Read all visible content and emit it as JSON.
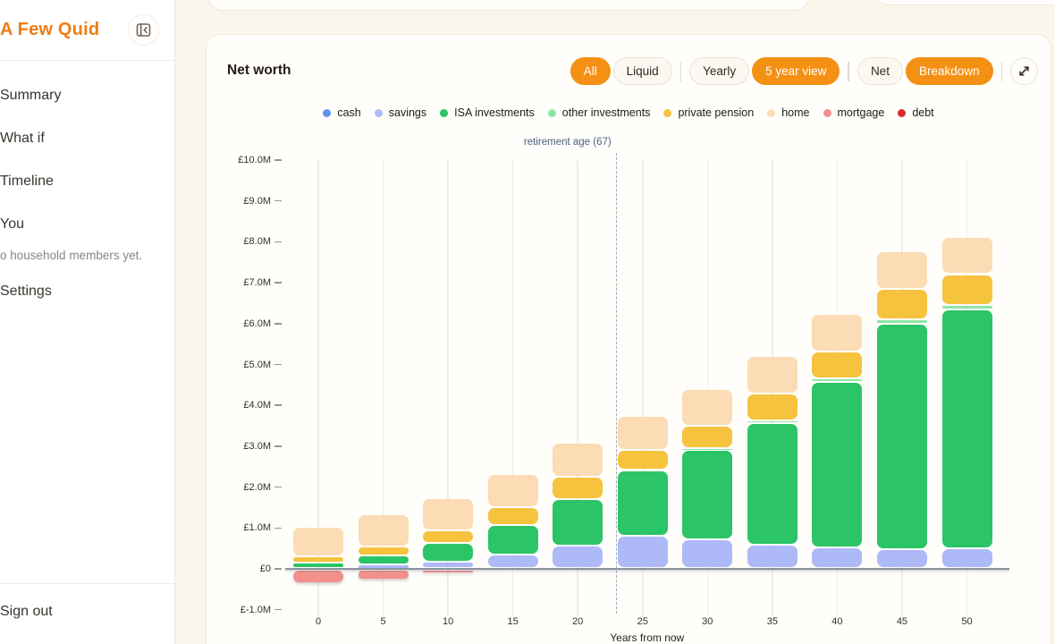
{
  "sidebar": {
    "logo": "A Few Quid",
    "items": [
      {
        "label": "Summary"
      },
      {
        "label": "What if"
      },
      {
        "label": "Timeline"
      },
      {
        "label": "You"
      },
      {
        "label": "Settings"
      }
    ],
    "household_note": "o household members yet.",
    "sign_out": "Sign out"
  },
  "card": {
    "title": "Net worth",
    "toggles": [
      {
        "options": [
          {
            "label": "All",
            "active": true
          },
          {
            "label": "Liquid",
            "active": false
          }
        ]
      },
      {
        "options": [
          {
            "label": "Yearly",
            "active": false
          },
          {
            "label": "5 year view",
            "active": true
          }
        ]
      },
      {
        "options": [
          {
            "label": "Net",
            "active": false
          },
          {
            "label": "Breakdown",
            "active": true
          }
        ]
      }
    ]
  },
  "legend": {
    "items": [
      {
        "label": "cash",
        "color": "#5f94ee"
      },
      {
        "label": "savings",
        "color": "#aeb9f7"
      },
      {
        "label": "ISA investments",
        "color": "#2bc467"
      },
      {
        "label": "other investments",
        "color": "#8ee6a6"
      },
      {
        "label": "private pension",
        "color": "#f6c33e"
      },
      {
        "label": "home",
        "color": "#fbdcb4"
      },
      {
        "label": "mortgage",
        "color": "#f2908e"
      },
      {
        "label": "debt",
        "color": "#da2c2c"
      }
    ]
  },
  "chart_data": {
    "type": "bar",
    "stacked": true,
    "title": "Net worth",
    "xlabel": "Years from now",
    "ylabel": "",
    "unit": "£M",
    "ylim": [
      -1,
      10
    ],
    "grid": "vertical-only",
    "legend_position": "top-center",
    "categories": [
      0,
      5,
      10,
      15,
      20,
      25,
      30,
      35,
      40,
      45,
      50
    ],
    "y_ticks": [
      {
        "v": 10,
        "label": "£10.0M"
      },
      {
        "v": 9,
        "label": "£9.0M"
      },
      {
        "v": 8,
        "label": "£8.0M"
      },
      {
        "v": 7,
        "label": "£7.0M"
      },
      {
        "v": 6,
        "label": "£6.0M"
      },
      {
        "v": 5,
        "label": "£5.0M"
      },
      {
        "v": 4,
        "label": "£4.0M"
      },
      {
        "v": 3,
        "label": "£3.0M"
      },
      {
        "v": 2,
        "label": "£2.0M"
      },
      {
        "v": 1,
        "label": "£1.0M"
      },
      {
        "v": 0,
        "label": "£0"
      },
      {
        "v": -1,
        "label": "£-1.0M"
      }
    ],
    "annotation": {
      "label": "retirement age (67)",
      "x_years": 23
    },
    "series": [
      {
        "name": "cash",
        "color": "#5f94ee",
        "values": [
          0.01,
          0.01,
          0.02,
          0.02,
          0.02,
          0.03,
          0.02,
          0.02,
          0.02,
          0.02,
          0.02
        ]
      },
      {
        "name": "savings",
        "color": "#aeb9f7",
        "values": [
          0.02,
          0.1,
          0.15,
          0.33,
          0.54,
          0.79,
          0.71,
          0.57,
          0.51,
          0.46,
          0.48
        ]
      },
      {
        "name": "ISA investments",
        "color": "#2bc467",
        "values": [
          0.12,
          0.22,
          0.47,
          0.72,
          1.14,
          1.58,
          2.18,
          2.98,
          4.05,
          5.52,
          5.85
        ]
      },
      {
        "name": "other investments",
        "color": "#8ee6a6",
        "values": [
          0.0,
          0.0,
          0.0,
          0.01,
          0.01,
          0.02,
          0.05,
          0.06,
          0.09,
          0.1,
          0.11
        ]
      },
      {
        "name": "private pension",
        "color": "#f6c33e",
        "values": [
          0.15,
          0.22,
          0.3,
          0.44,
          0.55,
          0.5,
          0.55,
          0.65,
          0.65,
          0.74,
          0.75
        ]
      },
      {
        "name": "home",
        "color": "#fbdcb4",
        "values": [
          0.72,
          0.78,
          0.78,
          0.8,
          0.83,
          0.82,
          0.89,
          0.92,
          0.92,
          0.92,
          0.9
        ]
      },
      {
        "name": "mortgage",
        "color": "#f2908e",
        "values": [
          -0.33,
          -0.23,
          -0.08,
          0,
          0,
          0,
          0,
          0,
          0,
          0,
          0
        ]
      },
      {
        "name": "debt",
        "color": "#da2c2c",
        "values": [
          0,
          0,
          0,
          0,
          0,
          0,
          0,
          0,
          0,
          0,
          0
        ]
      }
    ]
  }
}
